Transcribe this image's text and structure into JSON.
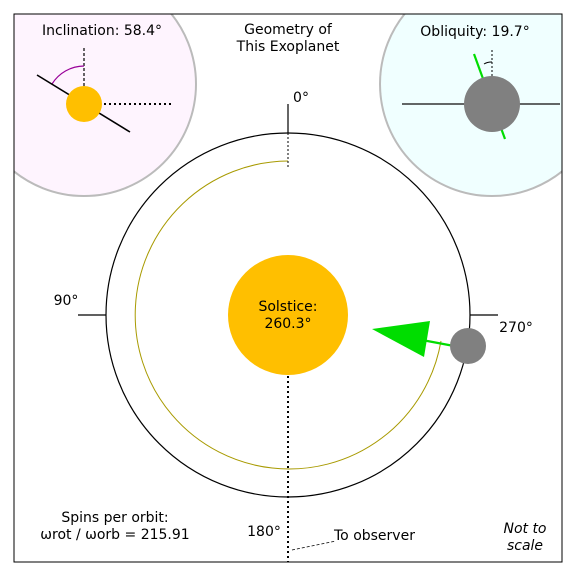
{
  "title_line1": "Geometry of",
  "title_line2": "This Exoplanet",
  "inclination_label": "Inclination: 58.4°",
  "obliquity_label": "Obliquity: 19.7°",
  "angles": {
    "top": "0°",
    "left": "90°",
    "bottom": "180°",
    "right": "270°"
  },
  "solstice_line1": "Solstice:",
  "solstice_line2": "260.3°",
  "observer_label": "To observer",
  "spins_line1": "Spins per orbit:",
  "spins_line2": "ωrot / ωorb = 215.91",
  "spins_value": 215.91,
  "not_to_scale_line1": "Not to",
  "not_to_scale_line2": "scale",
  "values": {
    "inclination_deg": 58.4,
    "obliquity_deg": 19.7,
    "solstice_deg": 260.3
  },
  "colors": {
    "star": "#FFBF00",
    "planet": "#808080",
    "spin_axis": "#00DD00",
    "inclination_arc": "#990099",
    "inclination_bg": "#FEF4FE",
    "obliquity_bg": "#F0FFFF",
    "inner_orbit": "#A89A00"
  }
}
